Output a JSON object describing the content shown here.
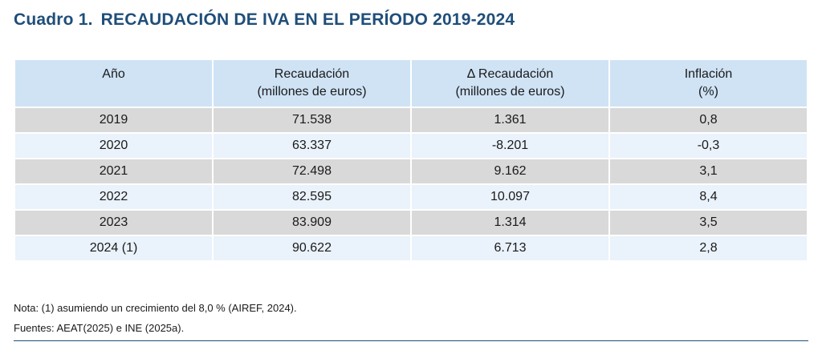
{
  "title": {
    "number": "Cuadro 1.",
    "text": "RECAUDACIÓN DE IVA EN EL PERÍODO 2019-2024"
  },
  "table": {
    "headers": [
      {
        "line1": "Año",
        "line2": ""
      },
      {
        "line1": "Recaudación",
        "line2": "(millones de euros)"
      },
      {
        "line1": "Δ Recaudación",
        "line2": "(millones de euros)"
      },
      {
        "line1": "Inflación",
        "line2": "(%)"
      }
    ],
    "rows": [
      [
        "2019",
        "71.538",
        "1.361",
        "0,8"
      ],
      [
        "2020",
        "63.337",
        "-8.201",
        "-0,3"
      ],
      [
        "2021",
        "72.498",
        "9.162",
        "3,1"
      ],
      [
        "2022",
        "82.595",
        "10.097",
        "8,4"
      ],
      [
        "2023",
        "83.909",
        "1.314",
        "3,5"
      ],
      [
        "2024 (1)",
        "90.622",
        "6.713",
        "2,8"
      ]
    ]
  },
  "notes": {
    "nota": "Nota: (1) asumiendo un crecimiento del 8,0 % (AIREF, 2024).",
    "fuentes": "Fuentes: AEAT(2025) e INE (2025a)."
  },
  "colors": {
    "title": "#1f4e79",
    "header_bg": "#cfe3f5",
    "row_odd": "#d9d9d9",
    "row_even": "#eaf2fb"
  }
}
